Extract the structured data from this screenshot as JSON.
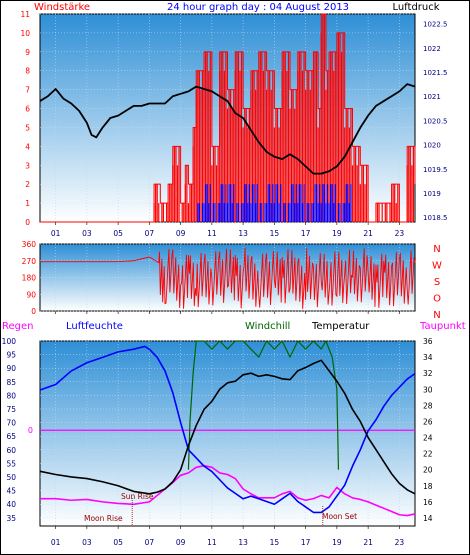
{
  "title": "24 hour graph day : 04 August 2013",
  "colors": {
    "border": "#000000",
    "red": "#ff0000",
    "blue": "#0000ff",
    "black": "#000000",
    "green": "#006600",
    "magenta": "#ff00ff",
    "navy": "#000080",
    "dkred": "#990000",
    "gradTop": "#2e8fd6",
    "gradBottom": "#ffffff"
  },
  "chart_data": [
    {
      "id": "wind_pressure",
      "type": "line",
      "left_label": "Windstärke",
      "right_label": "Luftdruck",
      "x_ticks": [
        "01",
        "03",
        "05",
        "07",
        "09",
        "11",
        "13",
        "15",
        "17",
        "19",
        "21",
        "23"
      ],
      "y_left_ticks": [
        0,
        1,
        2,
        3,
        4,
        5,
        6,
        7,
        8,
        9,
        10,
        11
      ],
      "y_left_range": [
        0,
        11
      ],
      "y_right_ticks": [
        1018.5,
        1019,
        1019.5,
        1020,
        1020.5,
        1021,
        1021.5,
        1022,
        1022.5
      ],
      "y_right_range": [
        1018.4,
        1022.7
      ],
      "series": [
        {
          "role": "pressure",
          "axis": "right",
          "color": "black",
          "x": [
            0,
            0.5,
            1,
            1.5,
            2,
            2.5,
            3,
            3.3,
            3.6,
            4,
            4.5,
            5,
            5.5,
            6,
            6.5,
            7,
            7.5,
            8,
            8.5,
            9,
            9.5,
            10,
            10.5,
            11,
            11.5,
            12,
            12.5,
            13,
            13.5,
            14,
            14.5,
            15,
            15.5,
            16,
            16.5,
            17,
            17.5,
            18,
            18.5,
            19,
            19.5,
            20,
            20.5,
            21,
            21.5,
            22,
            22.5,
            23,
            23.5,
            24
          ],
          "y": [
            1020.9,
            1021.0,
            1021.15,
            1020.95,
            1020.85,
            1020.7,
            1020.45,
            1020.2,
            1020.15,
            1020.35,
            1020.55,
            1020.6,
            1020.7,
            1020.8,
            1020.8,
            1020.85,
            1020.85,
            1020.85,
            1021.0,
            1021.05,
            1021.1,
            1021.2,
            1021.15,
            1021.1,
            1021.0,
            1020.9,
            1020.65,
            1020.55,
            1020.3,
            1020.05,
            1019.85,
            1019.75,
            1019.7,
            1019.8,
            1019.7,
            1019.55,
            1019.4,
            1019.4,
            1019.45,
            1019.55,
            1019.75,
            1020.05,
            1020.35,
            1020.6,
            1020.8,
            1020.9,
            1021.0,
            1021.1,
            1021.25,
            1021.2
          ]
        },
        {
          "role": "wind_gust",
          "axis": "left",
          "color": "red",
          "x": [
            0,
            4,
            7.1,
            7.3,
            7.7,
            8.2,
            8.5,
            9,
            9.3,
            9.5,
            9.8,
            10,
            10.5,
            11,
            11.5,
            12,
            12.5,
            13,
            13.5,
            14,
            14.5,
            15,
            15.5,
            16,
            16.5,
            17,
            17.5,
            17.8,
            18.0,
            18.3,
            18.5,
            19,
            19.5,
            20,
            20.5,
            21,
            21.5,
            22,
            22.5,
            23,
            23.5,
            24
          ],
          "y": [
            0,
            0,
            0,
            2,
            1,
            2,
            4,
            1,
            3,
            2,
            5,
            8,
            9,
            4,
            9,
            7,
            9,
            6,
            8,
            9,
            8,
            6,
            9,
            7,
            9,
            8,
            9,
            6,
            11,
            8,
            9,
            10,
            6,
            4,
            3,
            0,
            1,
            1,
            2,
            0,
            4,
            2
          ]
        },
        {
          "role": "wind_avg",
          "axis": "left",
          "color": "blue",
          "x": [
            0,
            9.5,
            10,
            10.5,
            11,
            11.5,
            12,
            12.5,
            13,
            13.5,
            14,
            14.5,
            15,
            15.5,
            16,
            16.5,
            17,
            17.5,
            18,
            18.5,
            19,
            19.5,
            20,
            24
          ],
          "y": [
            0,
            0,
            1,
            2,
            1,
            2,
            2,
            1,
            2,
            2,
            1,
            2,
            2,
            1,
            2,
            2,
            1,
            2,
            2,
            2,
            1,
            2,
            0,
            0
          ]
        }
      ]
    },
    {
      "id": "wind_direction",
      "type": "line",
      "y_left_ticks": [
        0,
        90,
        180,
        270,
        360
      ],
      "y_left_range": [
        0,
        360
      ],
      "right_labels": [
        "N",
        "W",
        "S",
        "O",
        "N"
      ],
      "series": [
        {
          "role": "direction",
          "color": "red",
          "x": [
            0,
            5,
            6,
            7,
            7.6,
            8,
            8.5,
            9,
            9.5,
            10,
            10.5,
            11,
            11.5,
            12,
            12.5,
            13,
            13.5,
            14,
            14.5,
            15,
            15.5,
            16,
            16.5,
            17,
            17.5,
            18,
            18.5,
            19,
            19.5,
            20,
            20.5,
            21,
            21.5,
            22,
            22.5,
            23,
            23.5,
            24
          ],
          "y": [
            265,
            265,
            270,
            290,
            260,
            40,
            330,
            140,
            300,
            80,
            260,
            180,
            320,
            130,
            300,
            210,
            270,
            90,
            310,
            170,
            290,
            120,
            260,
            60,
            240,
            160,
            100,
            80,
            200,
            180,
            230,
            210,
            250,
            270,
            240,
            280,
            120,
            260
          ]
        }
      ]
    },
    {
      "id": "humidity_temperature",
      "type": "line",
      "left_label": "Regen",
      "left_label2": "Luftfeuchte",
      "mid_label": "Windchill",
      "mid_label2": "Temperatur",
      "right_label": "Taupunkt",
      "zero_label": "0",
      "y_left_ticks": [
        35,
        40,
        45,
        50,
        55,
        60,
        65,
        70,
        75,
        80,
        85,
        90,
        95,
        100
      ],
      "y_left_range": [
        32,
        100
      ],
      "y_right_ticks": [
        14,
        16,
        18,
        20,
        22,
        24,
        26,
        28,
        30,
        32,
        34,
        36
      ],
      "y_right_range": [
        13,
        36
      ],
      "annotations": [
        "Moon Rise",
        "Sun Rise",
        "Moon Set"
      ],
      "series": [
        {
          "role": "humidity",
          "axis": "left",
          "color": "blue",
          "x": [
            0,
            1,
            2,
            3,
            4,
            5,
            6,
            6.7,
            7,
            7.5,
            8,
            8.5,
            9,
            9.5,
            10,
            10.5,
            11,
            11.5,
            12,
            12.5,
            13,
            13.5,
            14,
            14.5,
            15,
            15.5,
            16,
            16.5,
            17,
            17.5,
            18,
            18.5,
            19,
            19.5,
            20,
            20.5,
            21,
            21.5,
            22,
            22.5,
            23,
            23.5,
            24
          ],
          "y": [
            82,
            84,
            89,
            92,
            94,
            96,
            97,
            98,
            97,
            94,
            89,
            81,
            70,
            60,
            57,
            54,
            52,
            49,
            46,
            44,
            42,
            43,
            42,
            41,
            40,
            42,
            44,
            41,
            39,
            37,
            37,
            39,
            43,
            47,
            54,
            60,
            67,
            71,
            76,
            80,
            83,
            86,
            88
          ]
        },
        {
          "role": "temperature",
          "axis": "right",
          "color": "black",
          "x": [
            0,
            1,
            2,
            3,
            4,
            5,
            6,
            7,
            7.5,
            8,
            8.5,
            9,
            9.5,
            10,
            10.5,
            11,
            11.5,
            12,
            12.5,
            13,
            13.5,
            14,
            14.5,
            15,
            15.5,
            16,
            16.5,
            17,
            17.5,
            18,
            18.5,
            19,
            19.5,
            20,
            20.5,
            21,
            21.5,
            22,
            22.5,
            23,
            23.5,
            24
          ],
          "y": [
            19.8,
            19.4,
            19.1,
            18.9,
            18.5,
            18.0,
            17.3,
            17.0,
            17.2,
            17.6,
            18.5,
            20.0,
            23.0,
            25.5,
            27.5,
            28.5,
            30.0,
            30.8,
            31.0,
            31.8,
            32.0,
            31.6,
            31.8,
            31.6,
            31.3,
            31.2,
            32.3,
            32.7,
            33.2,
            33.6,
            32.3,
            31.0,
            29.5,
            27.5,
            26.0,
            24.0,
            22.5,
            21.0,
            19.5,
            18.3,
            17.5,
            17.0
          ]
        },
        {
          "role": "windchill",
          "axis": "right",
          "color": "green",
          "x": [
            9.5,
            9.6,
            9.8,
            10,
            10.5,
            11,
            11.5,
            12,
            12.5,
            13,
            13.5,
            14,
            14.5,
            15,
            15.5,
            16,
            16.5,
            17,
            17.5,
            18,
            18.3,
            18.7,
            19,
            19.1
          ],
          "y": [
            20,
            26,
            32,
            36,
            36,
            35,
            36,
            35,
            36,
            36,
            35,
            34,
            36,
            35,
            36,
            34,
            36,
            35,
            36,
            35,
            36,
            34,
            30,
            20
          ]
        },
        {
          "role": "dewpoint",
          "axis": "right",
          "color": "magenta",
          "x": [
            0,
            1,
            2,
            3,
            4,
            5,
            6,
            7,
            7.5,
            8,
            8.5,
            9,
            9.5,
            10,
            10.5,
            11,
            11.5,
            12,
            12.5,
            13,
            13.5,
            14,
            14.5,
            15,
            15.5,
            16,
            16.5,
            17,
            17.5,
            18,
            18.5,
            19,
            19.5,
            20,
            20.5,
            21,
            21.5,
            22,
            22.5,
            23,
            23.5,
            24
          ],
          "y": [
            16.4,
            16.4,
            16.2,
            16.3,
            16.0,
            15.8,
            15.7,
            16.0,
            16.8,
            17.6,
            18.4,
            19.3,
            19.6,
            20.3,
            20.5,
            20.3,
            19.6,
            19.4,
            18.9,
            17.6,
            17.0,
            16.5,
            16.5,
            16.5,
            17.0,
            17.3,
            16.5,
            16.2,
            16.4,
            16.8,
            16.5,
            17.8,
            17.0,
            16.5,
            16.3,
            16.0,
            15.6,
            15.2,
            14.8,
            14.4,
            14.3,
            14.5
          ]
        },
        {
          "role": "rain",
          "axis": "zero",
          "color": "magenta",
          "x": [
            0,
            24
          ],
          "y": [
            0,
            0
          ]
        }
      ]
    }
  ]
}
